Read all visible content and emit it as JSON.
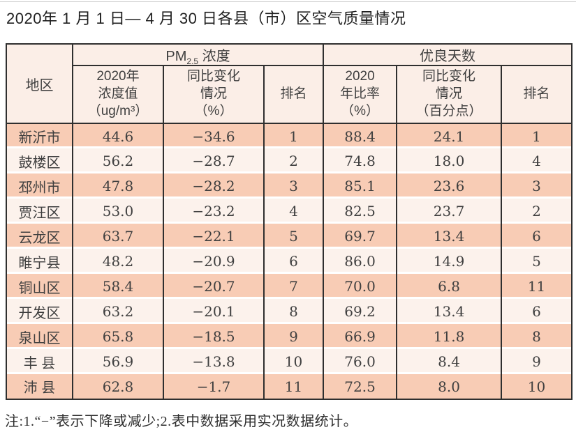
{
  "page": {
    "title": "2020年 1 月 1 日— 4 月 30 日各县（市）区空气质量情况",
    "footnote": "注:1.“−”表示下降或减少;2.表中数据采用实况数据统计。"
  },
  "colors": {
    "row_salmon": "#f8ccb5",
    "row_light": "#fcf2ec",
    "header_bg": "#fbeee7",
    "border_dark": "#2f2f2f"
  },
  "table": {
    "region_header": "地区",
    "group_pm": {
      "prefix": "PM",
      "sub": "2.5",
      "suffix": " 浓度"
    },
    "group_days": "优良天数",
    "col_headers": {
      "pm_value": "2020年\n浓度值\n（ug/m³）",
      "pm_change": "同比变化\n情况\n（%）",
      "pm_rank": "排名",
      "days_rate": "2020\n年比率\n（%）",
      "days_change": "同比变化\n情况\n（百分点）",
      "days_rank": "排名"
    },
    "rows": [
      {
        "region": "新沂市",
        "pm_value": "44.6",
        "pm_change": "−34.6",
        "pm_rank": "1",
        "days_rate": "88.4",
        "days_change": "24.1",
        "days_rank": "1"
      },
      {
        "region": "鼓楼区",
        "pm_value": "56.2",
        "pm_change": "−28.7",
        "pm_rank": "2",
        "days_rate": "74.8",
        "days_change": "18.0",
        "days_rank": "4"
      },
      {
        "region": "邳州市",
        "pm_value": "47.8",
        "pm_change": "−28.2",
        "pm_rank": "3",
        "days_rate": "85.1",
        "days_change": "23.6",
        "days_rank": "3"
      },
      {
        "region": "贾汪区",
        "pm_value": "53.0",
        "pm_change": "−23.2",
        "pm_rank": "4",
        "days_rate": "82.5",
        "days_change": "23.7",
        "days_rank": "2"
      },
      {
        "region": "云龙区",
        "pm_value": "63.7",
        "pm_change": "−22.1",
        "pm_rank": "5",
        "days_rate": "69.7",
        "days_change": "13.4",
        "days_rank": "6"
      },
      {
        "region": "睢宁县",
        "pm_value": "48.2",
        "pm_change": "−20.9",
        "pm_rank": "6",
        "days_rate": "86.0",
        "days_change": "14.9",
        "days_rank": "5"
      },
      {
        "region": "铜山区",
        "pm_value": "58.4",
        "pm_change": "−20.7",
        "pm_rank": "7",
        "days_rate": "70.0",
        "days_change": "6.8",
        "days_rank": "11"
      },
      {
        "region": "开发区",
        "pm_value": "63.2",
        "pm_change": "−20.1",
        "pm_rank": "8",
        "days_rate": "69.2",
        "days_change": "13.4",
        "days_rank": "6"
      },
      {
        "region": "泉山区",
        "pm_value": "65.8",
        "pm_change": "−18.5",
        "pm_rank": "9",
        "days_rate": "66.9",
        "days_change": "11.8",
        "days_rank": "8"
      },
      {
        "region": "丰 县",
        "pm_value": "56.9",
        "pm_change": "−13.8",
        "pm_rank": "10",
        "days_rate": "76.0",
        "days_change": "8.4",
        "days_rank": "9"
      },
      {
        "region": "沛 县",
        "pm_value": "62.8",
        "pm_change": "−1.7",
        "pm_rank": "11",
        "days_rate": "72.5",
        "days_change": "8.0",
        "days_rank": "10"
      }
    ]
  }
}
